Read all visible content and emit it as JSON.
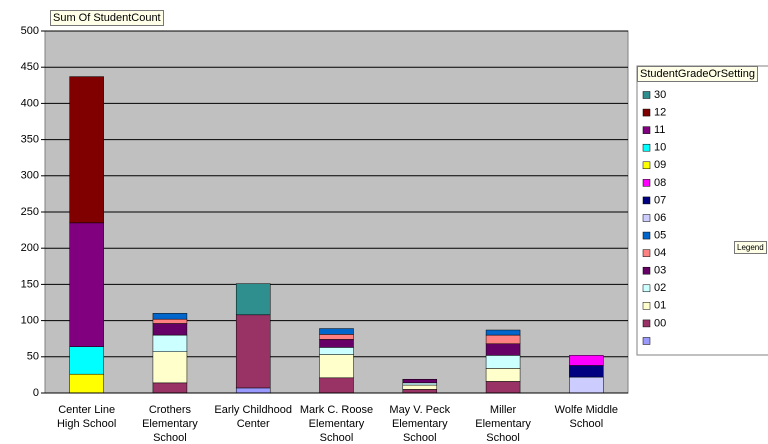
{
  "chart_data": {
    "type": "stacked_bar",
    "value_field": "Sum Of StudentCount",
    "legend_title": "StudentGradeOrSetting",
    "legend_button": "Legend",
    "categories": [
      "Center Line High School",
      "Crothers Elementary School",
      "Early Childhood Center",
      "Mark C. Roose Elementary School",
      "May V. Peck Elementary School",
      "Miller Elementary School",
      "Wolfe Middle School"
    ],
    "ylim": [
      0,
      500
    ],
    "yticks": [
      0,
      50,
      100,
      150,
      200,
      250,
      300,
      350,
      400,
      450,
      500
    ],
    "grid": true,
    "legend": "right",
    "series": [
      {
        "name": null,
        "color": "#9999ff",
        "values": [
          null,
          null,
          7,
          null,
          null,
          null,
          null
        ]
      },
      {
        "name": "00",
        "color": "#993366",
        "values": [
          null,
          14,
          101,
          21,
          5,
          16,
          null
        ]
      },
      {
        "name": "01",
        "color": "#ffffcc",
        "values": [
          null,
          43,
          null,
          32,
          6,
          18,
          null
        ]
      },
      {
        "name": "02",
        "color": "#ccffff",
        "values": [
          null,
          23,
          null,
          10,
          3,
          18,
          null
        ]
      },
      {
        "name": "03",
        "color": "#660066",
        "values": [
          null,
          16,
          null,
          11,
          5,
          16,
          null
        ]
      },
      {
        "name": "04",
        "color": "#ff8080",
        "values": [
          null,
          6,
          null,
          7,
          null,
          12,
          null
        ]
      },
      {
        "name": "05",
        "color": "#0066cc",
        "values": [
          null,
          8,
          null,
          8,
          null,
          7,
          null
        ]
      },
      {
        "name": "06",
        "color": "#ccccff",
        "values": [
          null,
          null,
          null,
          null,
          null,
          null,
          22
        ]
      },
      {
        "name": "07",
        "color": "#000080",
        "values": [
          null,
          null,
          null,
          null,
          null,
          null,
          16
        ]
      },
      {
        "name": "08",
        "color": "#ff00ff",
        "values": [
          null,
          null,
          null,
          null,
          null,
          null,
          14
        ]
      },
      {
        "name": "09",
        "color": "#ffff00",
        "values": [
          26,
          null,
          null,
          null,
          null,
          null,
          null
        ]
      },
      {
        "name": "10",
        "color": "#00ffff",
        "values": [
          38,
          null,
          null,
          null,
          null,
          null,
          null
        ]
      },
      {
        "name": "11",
        "color": "#800080",
        "values": [
          171,
          null,
          null,
          null,
          null,
          null,
          null
        ]
      },
      {
        "name": "12",
        "color": "#800000",
        "values": [
          202,
          null,
          null,
          null,
          null,
          null,
          null
        ]
      },
      {
        "name": "30",
        "color": "#2f8f8f",
        "values": [
          null,
          null,
          43,
          null,
          null,
          null,
          null
        ]
      }
    ]
  }
}
